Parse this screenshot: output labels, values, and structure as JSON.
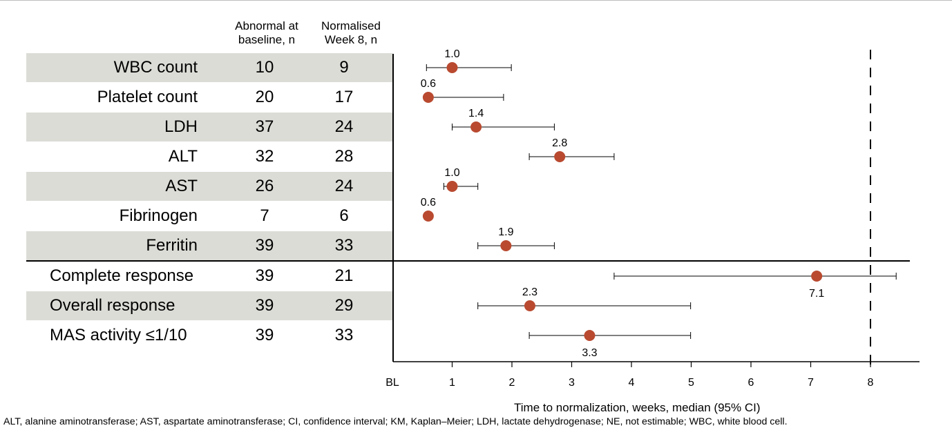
{
  "table": {
    "col1_header": [
      "Abnormal at",
      "baseline, n"
    ],
    "col2_header": [
      "Normalised",
      "Week 8, n"
    ]
  },
  "chart_data": {
    "type": "forest",
    "xlabel": "Time to normalization, weeks, median (95% CI)",
    "xlim": [
      0,
      8.5
    ],
    "xticks": [
      {
        "v": 0,
        "label": "BL"
      },
      {
        "v": 1,
        "label": "1"
      },
      {
        "v": 2,
        "label": "2"
      },
      {
        "v": 3,
        "label": "3"
      },
      {
        "v": 4,
        "label": "4"
      },
      {
        "v": 5,
        "label": "5"
      },
      {
        "v": 6,
        "label": "6"
      },
      {
        "v": 7,
        "label": "7"
      },
      {
        "v": 8,
        "label": "8"
      }
    ],
    "reference_line": 8,
    "point_color": "#b94a30",
    "rows": [
      {
        "label": "WBC count",
        "baseline": "10",
        "normalised": "9",
        "median": 1.0,
        "median_label": "1.0",
        "ci": [
          0.57,
          1.99
        ],
        "label_pos": "above"
      },
      {
        "label": "Platelet count",
        "baseline": "20",
        "normalised": "17",
        "median": 0.6,
        "median_label": "0.6",
        "ci": [
          0.57,
          1.86
        ],
        "label_pos": "above"
      },
      {
        "label": "LDH",
        "baseline": "37",
        "normalised": "24",
        "median": 1.4,
        "median_label": "1.4",
        "ci": [
          1.0,
          2.71
        ],
        "label_pos": "above"
      },
      {
        "label": "ALT",
        "baseline": "32",
        "normalised": "28",
        "median": 2.8,
        "median_label": "2.8",
        "ci": [
          2.29,
          3.71
        ],
        "label_pos": "above"
      },
      {
        "label": "AST",
        "baseline": "26",
        "normalised": "24",
        "median": 1.0,
        "median_label": "1.0",
        "ci": [
          0.86,
          1.43
        ],
        "label_pos": "above"
      },
      {
        "label": "Fibrinogen",
        "baseline": "7",
        "normalised": "6",
        "median": 0.6,
        "median_label": "0.6",
        "ci": null,
        "label_pos": "above"
      },
      {
        "label": "Ferritin",
        "baseline": "39",
        "normalised": "33",
        "median": 1.9,
        "median_label": "1.9",
        "ci": [
          1.43,
          2.71
        ],
        "label_pos": "above"
      },
      {
        "label": "Complete response",
        "baseline": "39",
        "normalised": "21",
        "median": 7.1,
        "median_label": "7.1",
        "ci": [
          3.71,
          8.43
        ],
        "label_pos": "below"
      },
      {
        "label": "Overall response",
        "baseline": "39",
        "normalised": "29",
        "median": 2.3,
        "median_label": "2.3",
        "ci": [
          1.43,
          4.99
        ],
        "label_pos": "above"
      },
      {
        "label": "MAS activity ≤1/10",
        "baseline": "39",
        "normalised": "33",
        "median": 3.3,
        "median_label": "3.3",
        "ci": [
          2.29,
          4.99
        ],
        "label_pos": "below"
      }
    ]
  },
  "footnote": "ALT, alanine aminotransferase; AST, aspartate aminotransferase; CI, confidence interval; KM, Kaplan–Meier; LDH, lactate dehydrogenase; NE, not estimable; WBC, white blood cell."
}
